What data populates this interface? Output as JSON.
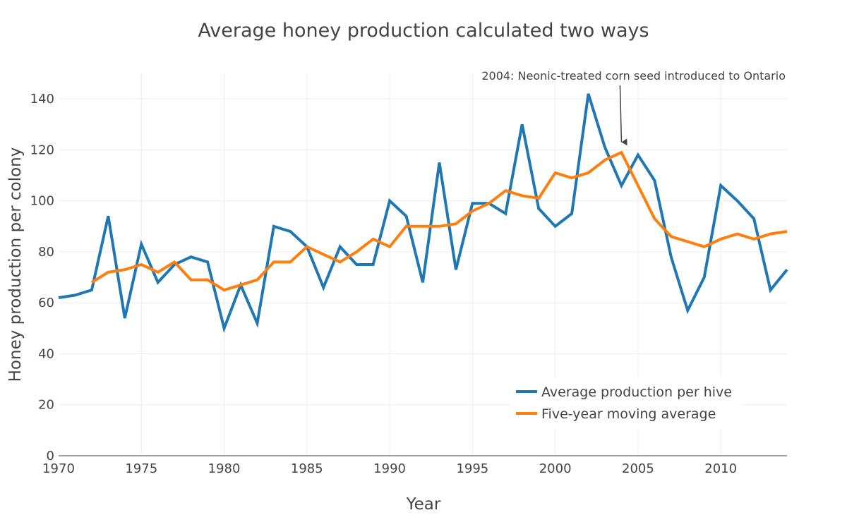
{
  "chart_data": {
    "type": "line",
    "title": "Average honey production calculated two ways",
    "xlabel": "Year",
    "ylabel": "Honey production per colony",
    "xlim": [
      1970,
      2014
    ],
    "ylim": [
      0,
      150
    ],
    "x_ticks": [
      1970,
      1975,
      1980,
      1985,
      1990,
      1995,
      2000,
      2005,
      2010
    ],
    "y_ticks": [
      0,
      20,
      40,
      60,
      80,
      100,
      120,
      140
    ],
    "grid": true,
    "legend_position": "bottom-right",
    "series": [
      {
        "name": "Average production per hive",
        "color": "#1f77b4",
        "x": [
          1970,
          1971,
          1972,
          1973,
          1974,
          1975,
          1976,
          1977,
          1978,
          1979,
          1980,
          1981,
          1982,
          1983,
          1984,
          1985,
          1986,
          1987,
          1988,
          1989,
          1990,
          1991,
          1992,
          1993,
          1994,
          1995,
          1996,
          1997,
          1998,
          1999,
          2000,
          2001,
          2002,
          2003,
          2004,
          2005,
          2006,
          2007,
          2008,
          2009,
          2010,
          2011,
          2012,
          2013,
          2014
        ],
        "values": [
          62,
          63,
          65,
          94,
          54,
          83,
          68,
          75,
          78,
          76,
          50,
          67,
          52,
          90,
          88,
          82,
          66,
          82,
          75,
          75,
          100,
          94,
          68,
          115,
          73,
          99,
          99,
          95,
          130,
          97,
          90,
          95,
          142,
          121,
          106,
          118,
          108,
          78,
          57,
          70,
          106,
          100,
          93,
          65,
          73
        ]
      },
      {
        "name": "Five-year moving average",
        "color": "#ff7f0e",
        "x": [
          1972,
          1973,
          1974,
          1975,
          1976,
          1977,
          1978,
          1979,
          1980,
          1981,
          1982,
          1983,
          1984,
          1985,
          1986,
          1987,
          1988,
          1989,
          1990,
          1991,
          1992,
          1993,
          1994,
          1995,
          1996,
          1997,
          1998,
          1999,
          2000,
          2001,
          2002,
          2003,
          2004,
          2005,
          2006,
          2007,
          2008,
          2009,
          2010,
          2011,
          2012,
          2013,
          2014
        ],
        "values": [
          68,
          72,
          73,
          75,
          72,
          76,
          69,
          69,
          65,
          67,
          69,
          76,
          76,
          82,
          79,
          76,
          80,
          85,
          82,
          90,
          90,
          90,
          91,
          96,
          99,
          104,
          102,
          101,
          111,
          109,
          111,
          116,
          119,
          106,
          93,
          86,
          84,
          82,
          85,
          87,
          85,
          87,
          88
        ]
      }
    ],
    "annotations": [
      {
        "text": "2004: Neonic-treated corn seed introduced to Ontario",
        "x": 2004,
        "y": 123,
        "arrow": true
      }
    ]
  }
}
